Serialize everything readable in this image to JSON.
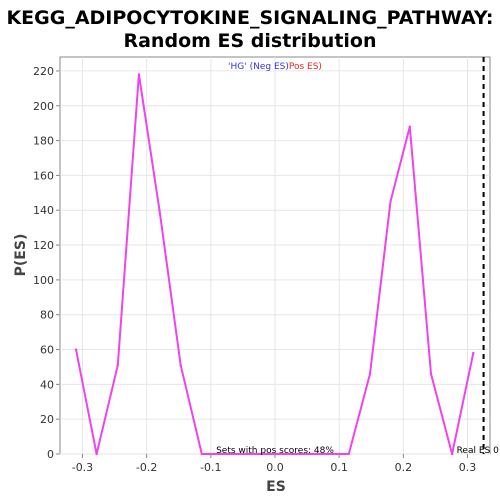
{
  "chart_data": {
    "type": "line",
    "title_line1": "KEGG_ADIPOCYTOKINE_SIGNALING_PATHWAY:",
    "title_line2": "Random ES distribution",
    "xlabel": "ES",
    "ylabel": "P(ES)",
    "xlim": [
      -0.335,
      0.335
    ],
    "ylim": [
      0,
      228
    ],
    "xticks": [
      -0.3,
      -0.2,
      -0.1,
      0.0,
      0.1,
      0.2,
      0.3
    ],
    "xtick_labels": [
      "-0.3",
      "-0.2",
      "-0.1",
      "0.0",
      "0.1",
      "0.2",
      "0.3"
    ],
    "yticks": [
      0,
      20,
      40,
      60,
      80,
      100,
      120,
      140,
      160,
      180,
      200,
      220
    ],
    "ytick_labels": [
      "0",
      "20",
      "40",
      "60",
      "80",
      "100",
      "120",
      "140",
      "160",
      "180",
      "200",
      "220"
    ],
    "grid": true,
    "series_color": "#ee44ee",
    "series": [
      {
        "x": [
          -0.31,
          -0.278,
          -0.245,
          -0.212,
          -0.18,
          -0.147,
          -0.114,
          -0.09,
          0.1,
          0.115,
          0.148,
          0.18,
          0.21,
          0.243,
          0.276,
          0.309
        ],
        "values": [
          60,
          0,
          51,
          218,
          140,
          51,
          0,
          0,
          0,
          0,
          46,
          145,
          188,
          46,
          0,
          58
        ]
      }
    ],
    "real_es": 0.325,
    "real_es_label": "Real ES 0",
    "legend": {
      "neg_text": "'HG' (Neg ES)",
      "pos_text": "Pos ES)",
      "neg_color": "#3333ee",
      "pos_color": "#ee2222"
    },
    "annotation": "Sets with pos scores: 48%"
  }
}
